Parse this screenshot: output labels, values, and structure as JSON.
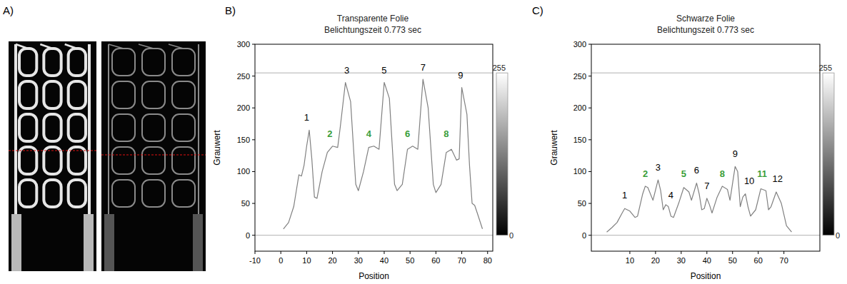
{
  "image_panel": {
    "panel_label": "A)"
  },
  "chart_data": [
    {
      "type": "line",
      "panel_label": "B)",
      "title": "Transparente Folie",
      "subtitle": "Belichtungszeit 0.773 sec",
      "x_label": "Position",
      "y_label": "Grauwert",
      "color": "#808080",
      "grid": false,
      "xlim": [
        -10,
        82
      ],
      "ylim": [
        -25,
        300
      ],
      "xticks": [
        -10,
        0,
        10,
        20,
        30,
        40,
        50,
        60,
        70,
        80
      ],
      "yticks": [
        0,
        50,
        100,
        150,
        200,
        250,
        300
      ],
      "hlines": [
        0,
        255
      ],
      "colorbar": {
        "range": [
          0,
          255
        ],
        "ticks": [
          0,
          255
        ]
      },
      "x": [
        1,
        3,
        5,
        6,
        7,
        8,
        9,
        10,
        11,
        12,
        13,
        14,
        16,
        18,
        20,
        22,
        23,
        25,
        27,
        29,
        30,
        32,
        34,
        36,
        38,
        40,
        42,
        44,
        45,
        47,
        49,
        51,
        53,
        55,
        57,
        59,
        60,
        62,
        64,
        66,
        68,
        69,
        70,
        72,
        73,
        74,
        75,
        76,
        78
      ],
      "values": [
        10,
        20,
        45,
        70,
        95,
        93,
        110,
        140,
        165,
        120,
        60,
        58,
        100,
        130,
        140,
        138,
        170,
        240,
        210,
        80,
        70,
        100,
        138,
        140,
        135,
        240,
        215,
        80,
        70,
        80,
        135,
        140,
        135,
        245,
        200,
        80,
        67,
        80,
        130,
        135,
        118,
        120,
        232,
        190,
        110,
        50,
        47,
        35,
        10
      ],
      "annotations": [
        {
          "text": "1",
          "x": 10,
          "y": 180,
          "color": "#000000"
        },
        {
          "text": "2",
          "x": 19,
          "y": 154,
          "color": "#3a9e3a"
        },
        {
          "text": "3",
          "x": 25.5,
          "y": 254,
          "color": "#000000"
        },
        {
          "text": "4",
          "x": 34,
          "y": 154,
          "color": "#3a9e3a"
        },
        {
          "text": "5",
          "x": 40,
          "y": 254,
          "color": "#000000"
        },
        {
          "text": "6",
          "x": 49,
          "y": 154,
          "color": "#3a9e3a"
        },
        {
          "text": "7",
          "x": 55,
          "y": 259,
          "color": "#000000"
        },
        {
          "text": "8",
          "x": 64,
          "y": 154,
          "color": "#3a9e3a"
        },
        {
          "text": "9",
          "x": 69.5,
          "y": 246,
          "color": "#000000"
        }
      ]
    },
    {
      "type": "line",
      "panel_label": "C)",
      "title": "Schwarze Folie",
      "subtitle": "Belichtungszeit 0.773 sec",
      "x_label": "Position",
      "y_label": "Grauwert",
      "color": "#808080",
      "grid": false,
      "xlim": [
        -5,
        84
      ],
      "ylim": [
        -25,
        300
      ],
      "xticks": [
        10,
        20,
        30,
        40,
        50,
        60,
        70
      ],
      "yticks": [
        0,
        50,
        100,
        150,
        200,
        250,
        300
      ],
      "hlines": [
        0,
        255
      ],
      "colorbar": {
        "range": [
          0,
          255
        ],
        "ticks": [
          0,
          255
        ]
      },
      "x": [
        1,
        3,
        5,
        7,
        8,
        10,
        12,
        13,
        15,
        16,
        17,
        19,
        21,
        22,
        23,
        24,
        25,
        26,
        27,
        29,
        31,
        33,
        34,
        36,
        37,
        38,
        39,
        40,
        41,
        42,
        44,
        46,
        48,
        49,
        51,
        52,
        53,
        54,
        55,
        56,
        57,
        59,
        61,
        63,
        64,
        65,
        67,
        69,
        71,
        73
      ],
      "values": [
        5,
        12,
        20,
        35,
        42,
        38,
        28,
        30,
        65,
        77,
        75,
        55,
        87,
        70,
        40,
        48,
        45,
        30,
        28,
        50,
        75,
        68,
        55,
        82,
        65,
        40,
        42,
        58,
        48,
        35,
        60,
        77,
        72,
        55,
        108,
        100,
        45,
        60,
        65,
        45,
        30,
        40,
        73,
        70,
        40,
        45,
        68,
        50,
        15,
        5
      ],
      "annotations": [
        {
          "text": "1",
          "x": 8,
          "y": 58,
          "color": "#000000"
        },
        {
          "text": "2",
          "x": 16,
          "y": 92,
          "color": "#3a9e3a"
        },
        {
          "text": "3",
          "x": 21,
          "y": 102,
          "color": "#000000"
        },
        {
          "text": "4",
          "x": 26,
          "y": 58,
          "color": "#000000"
        },
        {
          "text": "5",
          "x": 31,
          "y": 92,
          "color": "#3a9e3a"
        },
        {
          "text": "6",
          "x": 36,
          "y": 97,
          "color": "#000000"
        },
        {
          "text": "7",
          "x": 40,
          "y": 73,
          "color": "#000000"
        },
        {
          "text": "8",
          "x": 46,
          "y": 92,
          "color": "#3a9e3a"
        },
        {
          "text": "9",
          "x": 51,
          "y": 123,
          "color": "#000000"
        },
        {
          "text": "10",
          "x": 56.5,
          "y": 80,
          "color": "#000000"
        },
        {
          "text": "11",
          "x": 61.5,
          "y": 92,
          "color": "#3a9e3a"
        },
        {
          "text": "12",
          "x": 67.5,
          "y": 84,
          "color": "#000000"
        }
      ]
    }
  ]
}
